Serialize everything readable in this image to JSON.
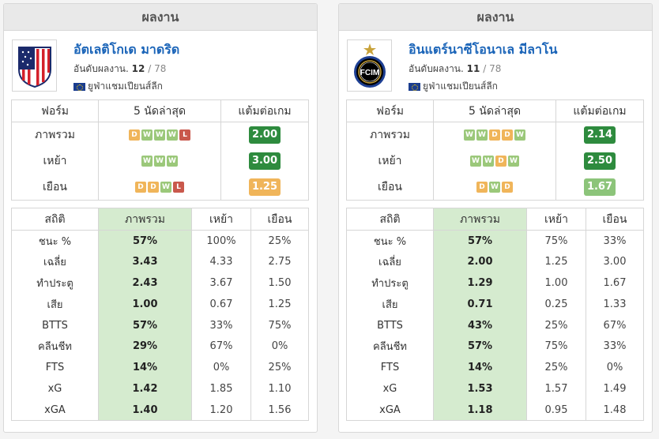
{
  "panels": [
    {
      "header": "ผลงาน",
      "team_name": "อัตเลติโกเด มาดริด",
      "rank_prefix": "อันดับผลงาน.",
      "rank": "12",
      "rank_total": "78",
      "competition": "ยูฟ่าแชมเปียนส์ลีก",
      "form_headers": [
        "ฟอร์ม",
        "5 นัดล่าสุด",
        "แต้มต่อเกม"
      ],
      "form_rows": [
        {
          "label": "ภาพรวม",
          "results": [
            "D",
            "W",
            "W",
            "W",
            "L"
          ],
          "ppg": "2.00",
          "ppg_color": "#2e8b3e"
        },
        {
          "label": "เหย้า",
          "results": [
            "W",
            "W",
            "W"
          ],
          "ppg": "3.00",
          "ppg_color": "#2e8b3e"
        },
        {
          "label": "เยือน",
          "results": [
            "D",
            "D",
            "W",
            "L"
          ],
          "ppg": "1.25",
          "ppg_color": "#f0b55a"
        }
      ],
      "stats_headers": [
        "สถิติ",
        "ภาพรวม",
        "เหย้า",
        "เยือน"
      ],
      "stats": [
        {
          "label": "ชนะ %",
          "overall": "57%",
          "home": "100%",
          "away": "25%"
        },
        {
          "label": "เฉลี่ย",
          "overall": "3.43",
          "home": "4.33",
          "away": "2.75"
        },
        {
          "label": "ทำประตู",
          "overall": "2.43",
          "home": "3.67",
          "away": "1.50"
        },
        {
          "label": "เสีย",
          "overall": "1.00",
          "home": "0.67",
          "away": "1.25"
        },
        {
          "label": "BTTS",
          "overall": "57%",
          "home": "33%",
          "away": "75%"
        },
        {
          "label": "คลีนชีท",
          "overall": "29%",
          "home": "67%",
          "away": "0%"
        },
        {
          "label": "FTS",
          "overall": "14%",
          "home": "0%",
          "away": "25%"
        },
        {
          "label": "xG",
          "overall": "1.42",
          "home": "1.85",
          "away": "1.10"
        },
        {
          "label": "xGA",
          "overall": "1.40",
          "home": "1.20",
          "away": "1.56"
        }
      ]
    },
    {
      "header": "ผลงาน",
      "team_name": "อินแตร์นาซีโอนาเล มีลาโน",
      "rank_prefix": "อันดับผลงาน.",
      "rank": "11",
      "rank_total": "78",
      "competition": "ยูฟ่าแชมเปียนส์ลีก",
      "form_headers": [
        "ฟอร์ม",
        "5 นัดล่าสุด",
        "แต้มต่อเกม"
      ],
      "form_rows": [
        {
          "label": "ภาพรวม",
          "results": [
            "W",
            "W",
            "D",
            "D",
            "W"
          ],
          "ppg": "2.14",
          "ppg_color": "#2e8b3e"
        },
        {
          "label": "เหย้า",
          "results": [
            "W",
            "W",
            "D",
            "W"
          ],
          "ppg": "2.50",
          "ppg_color": "#2e8b3e"
        },
        {
          "label": "เยือน",
          "results": [
            "D",
            "W",
            "D"
          ],
          "ppg": "1.67",
          "ppg_color": "#8cc47a"
        }
      ],
      "stats_headers": [
        "สถิติ",
        "ภาพรวม",
        "เหย้า",
        "เยือน"
      ],
      "stats": [
        {
          "label": "ชนะ %",
          "overall": "57%",
          "home": "75%",
          "away": "33%"
        },
        {
          "label": "เฉลี่ย",
          "overall": "2.00",
          "home": "1.25",
          "away": "3.00"
        },
        {
          "label": "ทำประตู",
          "overall": "1.29",
          "home": "1.00",
          "away": "1.67"
        },
        {
          "label": "เสีย",
          "overall": "0.71",
          "home": "0.25",
          "away": "1.33"
        },
        {
          "label": "BTTS",
          "overall": "43%",
          "home": "25%",
          "away": "67%"
        },
        {
          "label": "คลีนชีท",
          "overall": "57%",
          "home": "75%",
          "away": "33%"
        },
        {
          "label": "FTS",
          "overall": "14%",
          "home": "25%",
          "away": "0%"
        },
        {
          "label": "xG",
          "overall": "1.53",
          "home": "1.57",
          "away": "1.49"
        },
        {
          "label": "xGA",
          "overall": "1.18",
          "home": "0.95",
          "away": "1.48"
        }
      ]
    }
  ]
}
